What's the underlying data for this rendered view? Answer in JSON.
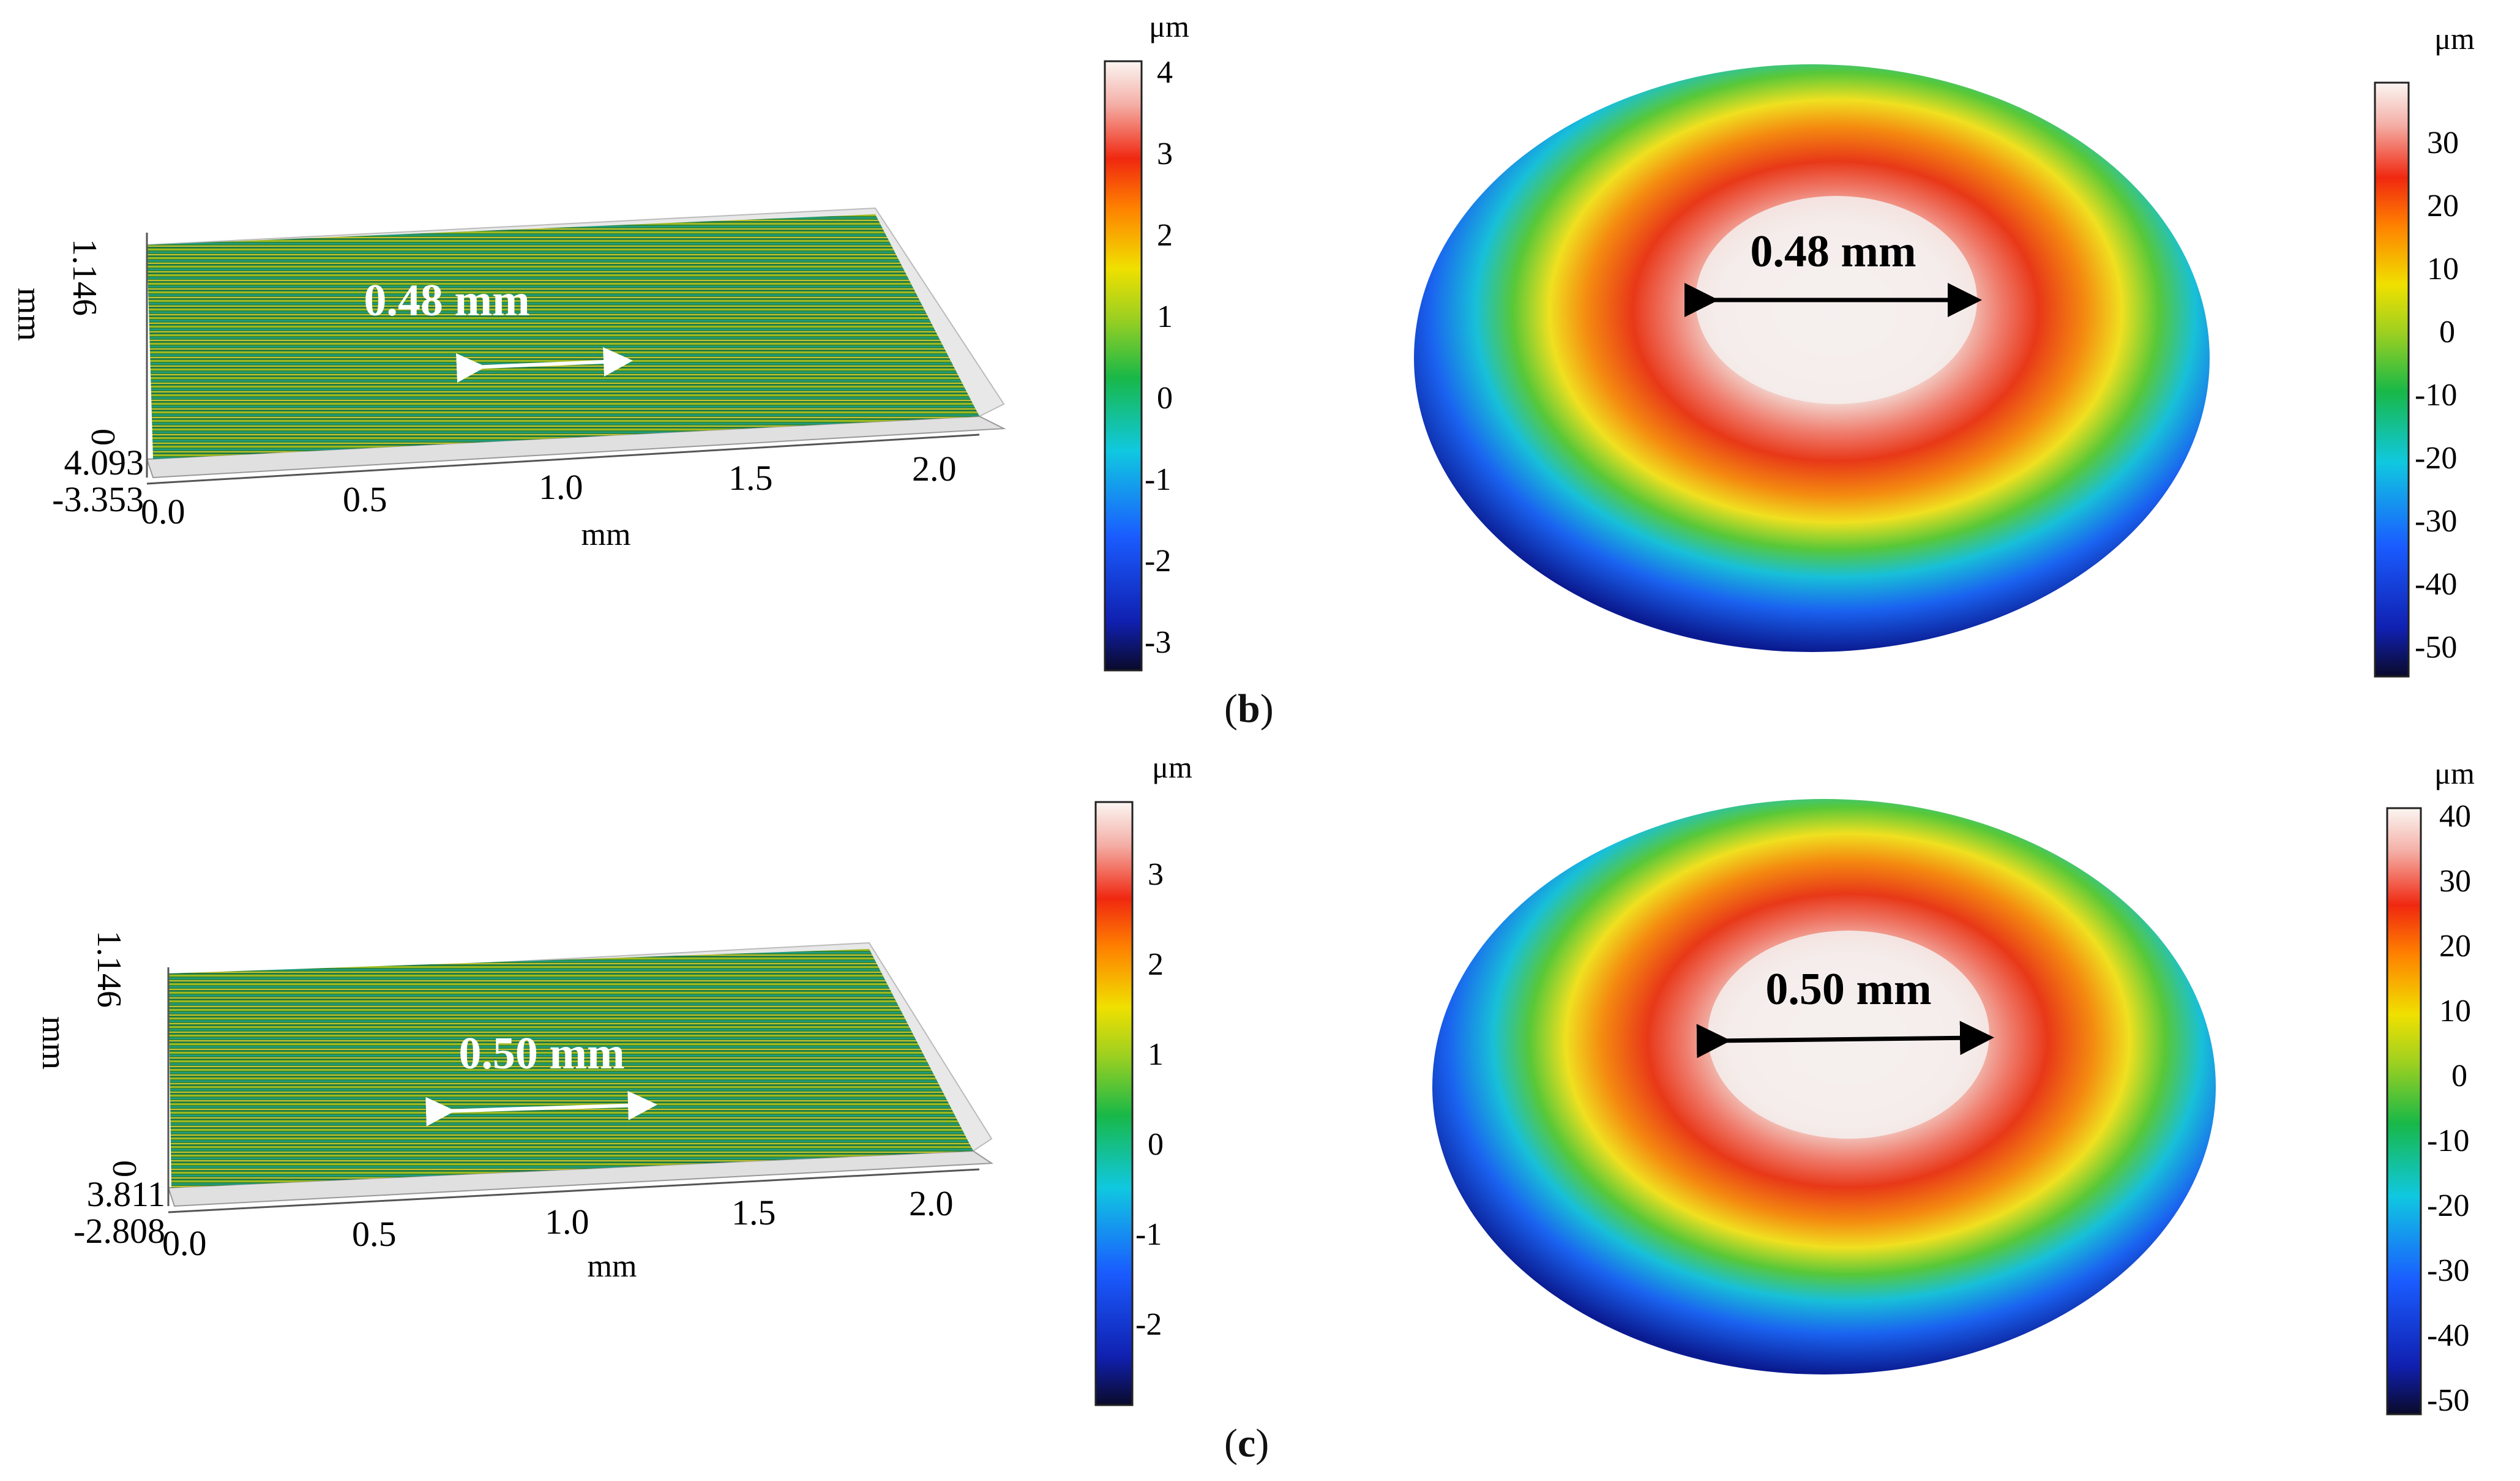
{
  "panel_b": {
    "label": "b",
    "surface_plot": {
      "annotation": "0.48 mm",
      "z_axis_ticks": [
        "1.146",
        "0"
      ],
      "z_axis_label": "mm",
      "y_axis_ticks": [
        "4.093",
        "-3.353"
      ],
      "x_axis_ticks": [
        "0.0",
        "0.5",
        "1.0",
        "1.5",
        "2.0"
      ],
      "x_axis_label": "mm",
      "colorbar": {
        "unit": "μm",
        "ticks": [
          "4",
          "3",
          "2",
          "1",
          "0",
          "-1",
          "-2",
          "-3"
        ]
      }
    },
    "height_map": {
      "annotation": "0.48 mm",
      "colorbar": {
        "unit": "μm",
        "ticks": [
          "30",
          "20",
          "10",
          "0",
          "-10",
          "-20",
          "-30",
          "-40",
          "-50"
        ]
      }
    }
  },
  "panel_c": {
    "label": "c",
    "surface_plot": {
      "annotation": "0.50 mm",
      "z_axis_ticks": [
        "1.146",
        "0"
      ],
      "z_axis_label": "mm",
      "y_axis_ticks": [
        "3.811",
        "-2.808"
      ],
      "x_axis_ticks": [
        "0.0",
        "0.5",
        "1.0",
        "1.5",
        "2.0"
      ],
      "x_axis_label": "mm",
      "colorbar": {
        "unit": "μm",
        "ticks": [
          "3",
          "2",
          "1",
          "0",
          "-1",
          "-2"
        ]
      }
    },
    "height_map": {
      "annotation": "0.50 mm",
      "colorbar": {
        "unit": "μm",
        "ticks": [
          "40",
          "30",
          "20",
          "10",
          "0",
          "-10",
          "-20",
          "-30",
          "-40",
          "-50"
        ]
      }
    }
  }
}
